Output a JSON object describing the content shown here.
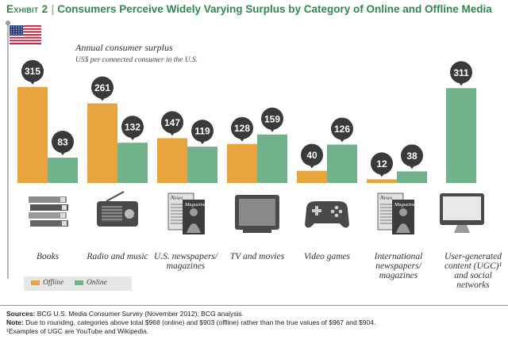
{
  "exhibit": {
    "label": "Exhibit 2",
    "title": "Consumers Perceive Widely Varying Surplus by Category of Online and Offline Media"
  },
  "colors": {
    "offline": "#e8a33d",
    "online": "#72b28a",
    "bubble": "#3a3a3a",
    "accent": "#2f8a4a"
  },
  "chart_data": {
    "type": "bar",
    "title": "Annual consumer surplus",
    "subtitle": "US$ per connected consumer in the U.S.",
    "categories": [
      "Books",
      "Radio and music",
      "U.S. newspapers/ magazines",
      "TV and movies",
      "Video games",
      "International newspapers/ magazines",
      "User-generated content (UGC)¹ and social networks"
    ],
    "category_icons": [
      "books-icon",
      "radio-icon",
      "newspaper-magazine-icon",
      "tv-icon",
      "gamepad-icon",
      "newspaper-magazine-icon",
      "computer-monitor-icon"
    ],
    "series": [
      {
        "name": "Offline",
        "values": [
          315,
          261,
          147,
          128,
          40,
          12,
          null
        ]
      },
      {
        "name": "Online",
        "values": [
          83,
          132,
          119,
          159,
          126,
          38,
          311
        ]
      }
    ],
    "ylim": [
      0,
      320
    ],
    "grid": false,
    "legend_position": "bottom-left",
    "icon_labels": {
      "news": "News",
      "magazine": "Magazine"
    }
  },
  "legend": {
    "offline": "Offline",
    "online": "Online"
  },
  "notes": {
    "sources_label": "Sources:",
    "sources_text": "BCG U.S. Media Consumer Survey (November 2012); BCG analysis.",
    "note_label": "Note:",
    "note_text": "Due to rounding, categories above total $968 (online) and $903 (offline) rather than the true values of $967 and $904.",
    "footnote": "¹Examples of UGC are YouTube and Wikipedia."
  }
}
